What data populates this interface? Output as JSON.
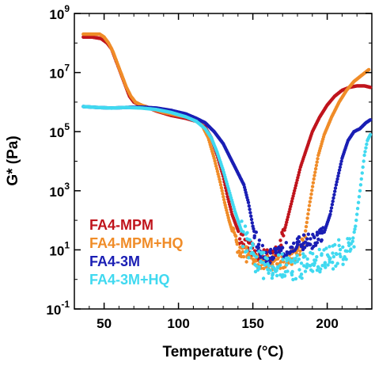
{
  "chart_data": {
    "type": "scatter",
    "xlabel": "Temperature (°C)",
    "ylabel": "G* (Pa)",
    "xlim": [
      30,
      230
    ],
    "ylim_log10": [
      -1,
      9
    ],
    "y_scale": "log",
    "grid": false,
    "legend_position": "bottom-left",
    "x_ticks": [
      {
        "value": 50,
        "label": "50"
      },
      {
        "value": 100,
        "label": "100"
      },
      {
        "value": 150,
        "label": "150"
      },
      {
        "value": 200,
        "label": "200"
      }
    ],
    "y_ticks": [
      {
        "value": -1,
        "base": "10",
        "exp": "-1"
      },
      {
        "value": 1,
        "base": "10",
        "exp": "1"
      },
      {
        "value": 3,
        "base": "10",
        "exp": "3"
      },
      {
        "value": 5,
        "base": "10",
        "exp": "5"
      },
      {
        "value": 7,
        "base": "10",
        "exp": "7"
      },
      {
        "value": 9,
        "base": "10",
        "exp": "9"
      }
    ],
    "series": [
      {
        "name": "FA4-MPM",
        "color": "#c0141c",
        "points": [
          [
            36,
            8.2
          ],
          [
            42,
            8.2
          ],
          [
            48,
            8.15
          ],
          [
            52,
            8.0
          ],
          [
            55,
            7.8
          ],
          [
            58,
            7.4
          ],
          [
            61,
            7.0
          ],
          [
            64,
            6.6
          ],
          [
            67,
            6.2
          ],
          [
            70,
            6.0
          ],
          [
            74,
            5.9
          ],
          [
            78,
            5.85
          ],
          [
            85,
            5.7
          ],
          [
            95,
            5.55
          ],
          [
            105,
            5.45
          ],
          [
            112,
            5.35
          ],
          [
            118,
            5.15
          ],
          [
            122,
            4.8
          ],
          [
            126,
            4.2
          ],
          [
            130,
            3.5
          ],
          [
            133,
            2.8
          ],
          [
            136,
            2.2
          ],
          [
            139,
            1.8
          ],
          [
            142,
            1.4
          ],
          [
            146,
            1.1
          ],
          [
            150,
            0.95
          ],
          [
            154,
            0.85
          ],
          [
            158,
            0.8
          ],
          [
            162,
            0.8
          ],
          [
            166,
            0.9
          ],
          [
            170,
            1.4
          ],
          [
            174,
            2.2
          ],
          [
            178,
            3.0
          ],
          [
            182,
            3.8
          ],
          [
            186,
            4.4
          ],
          [
            190,
            5.0
          ],
          [
            195,
            5.5
          ],
          [
            200,
            5.9
          ],
          [
            205,
            6.2
          ],
          [
            210,
            6.4
          ],
          [
            215,
            6.5
          ],
          [
            220,
            6.55
          ],
          [
            225,
            6.55
          ],
          [
            229,
            6.5
          ]
        ]
      },
      {
        "name": "FA4-MPM+HQ",
        "color": "#f08c28",
        "points": [
          [
            36,
            8.3
          ],
          [
            42,
            8.3
          ],
          [
            47,
            8.3
          ],
          [
            50,
            8.2
          ],
          [
            53,
            8.0
          ],
          [
            56,
            7.7
          ],
          [
            59,
            7.3
          ],
          [
            62,
            6.9
          ],
          [
            65,
            6.5
          ],
          [
            68,
            6.2
          ],
          [
            71,
            6.0
          ],
          [
            75,
            5.9
          ],
          [
            80,
            5.8
          ],
          [
            90,
            5.65
          ],
          [
            100,
            5.55
          ],
          [
            110,
            5.45
          ],
          [
            116,
            5.2
          ],
          [
            120,
            4.8
          ],
          [
            124,
            4.1
          ],
          [
            128,
            3.3
          ],
          [
            131,
            2.6
          ],
          [
            134,
            2.0
          ],
          [
            137,
            1.5
          ],
          [
            140,
            1.1
          ],
          [
            144,
            0.9
          ],
          [
            148,
            0.7
          ],
          [
            152,
            0.6
          ],
          [
            158,
            0.6
          ],
          [
            164,
            0.55
          ],
          [
            170,
            0.6
          ],
          [
            174,
            0.7
          ],
          [
            178,
            0.8
          ],
          [
            182,
            1.0
          ],
          [
            185,
            1.5
          ],
          [
            188,
            2.5
          ],
          [
            191,
            3.4
          ],
          [
            194,
            4.2
          ],
          [
            198,
            4.9
          ],
          [
            203,
            5.5
          ],
          [
            208,
            6.0
          ],
          [
            213,
            6.4
          ],
          [
            218,
            6.7
          ],
          [
            223,
            6.9
          ],
          [
            228,
            7.1
          ]
        ]
      },
      {
        "name": "FA4-3M",
        "color": "#1a1eb4",
        "points": [
          [
            36,
            5.85
          ],
          [
            45,
            5.82
          ],
          [
            55,
            5.8
          ],
          [
            65,
            5.82
          ],
          [
            75,
            5.83
          ],
          [
            85,
            5.8
          ],
          [
            95,
            5.72
          ],
          [
            105,
            5.6
          ],
          [
            112,
            5.45
          ],
          [
            118,
            5.3
          ],
          [
            124,
            5.0
          ],
          [
            130,
            4.6
          ],
          [
            135,
            4.1
          ],
          [
            140,
            3.6
          ],
          [
            144,
            3.2
          ],
          [
            147,
            2.6
          ],
          [
            150,
            1.8
          ],
          [
            153,
            1.2
          ],
          [
            156,
            0.9
          ],
          [
            160,
            0.8
          ],
          [
            165,
            0.8
          ],
          [
            170,
            0.9
          ],
          [
            174,
            1.1
          ],
          [
            178,
            1.2
          ],
          [
            182,
            1.2
          ],
          [
            186,
            1.3
          ],
          [
            190,
            1.3
          ],
          [
            194,
            1.4
          ],
          [
            198,
            1.6
          ],
          [
            202,
            2.2
          ],
          [
            206,
            3.2
          ],
          [
            210,
            4.1
          ],
          [
            214,
            4.7
          ],
          [
            218,
            5.0
          ],
          [
            222,
            5.1
          ],
          [
            226,
            5.3
          ],
          [
            229,
            5.4
          ]
        ]
      },
      {
        "name": "FA4-3M+HQ",
        "color": "#40d9f0",
        "points": [
          [
            36,
            5.85
          ],
          [
            45,
            5.82
          ],
          [
            55,
            5.8
          ],
          [
            65,
            5.82
          ],
          [
            75,
            5.8
          ],
          [
            85,
            5.75
          ],
          [
            95,
            5.65
          ],
          [
            105,
            5.5
          ],
          [
            112,
            5.35
          ],
          [
            118,
            5.1
          ],
          [
            122,
            4.8
          ],
          [
            126,
            4.3
          ],
          [
            130,
            3.7
          ],
          [
            134,
            3.0
          ],
          [
            138,
            2.3
          ],
          [
            142,
            1.7
          ],
          [
            146,
            1.2
          ],
          [
            150,
            0.7
          ],
          [
            155,
            0.5
          ],
          [
            160,
            0.45
          ],
          [
            166,
            0.4
          ],
          [
            172,
            0.45
          ],
          [
            178,
            0.4
          ],
          [
            184,
            0.5
          ],
          [
            190,
            0.55
          ],
          [
            196,
            0.6
          ],
          [
            200,
            0.7
          ],
          [
            204,
            0.8
          ],
          [
            208,
            0.9
          ],
          [
            212,
            1.0
          ],
          [
            216,
            1.1
          ],
          [
            219,
            1.8
          ],
          [
            221,
            2.6
          ],
          [
            223,
            3.4
          ],
          [
            225,
            4.2
          ],
          [
            227,
            4.7
          ],
          [
            229,
            4.9
          ]
        ]
      }
    ]
  }
}
